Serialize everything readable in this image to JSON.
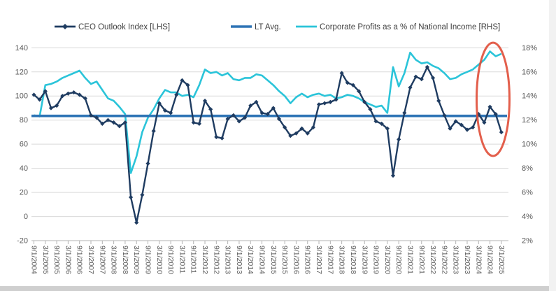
{
  "legend": {
    "items": [
      {
        "label": "CEO Outlook Index [LHS]",
        "color": "#1f3c61",
        "marker": "line-diamond"
      },
      {
        "label": "LT Avg.",
        "color": "#2e74b5",
        "marker": "line"
      },
      {
        "label": "Corporate Profits as a % of National Income [RHS]",
        "color": "#2bc4d9",
        "marker": "line"
      }
    ]
  },
  "chart_data": {
    "type": "line",
    "frequency": "quarterly",
    "x_start": "9/1/2004",
    "x_end": "3/1/2025",
    "x_axis_tick_labels": [
      "9/1/2004",
      "3/1/2005",
      "9/1/2005",
      "3/1/2006",
      "9/1/2006",
      "3/1/2007",
      "9/1/2007",
      "3/1/2008",
      "9/1/2008",
      "3/1/2009",
      "9/1/2009",
      "3/1/2010",
      "9/1/2010",
      "3/1/2011",
      "9/1/2011",
      "3/1/2012",
      "9/1/2012",
      "3/1/2013",
      "9/1/2013",
      "3/1/2014",
      "9/1/2014",
      "3/1/2015",
      "9/1/2015",
      "3/1/2016",
      "9/1/2016",
      "3/1/2017",
      "9/1/2017",
      "3/1/2018",
      "9/1/2018",
      "3/1/2019",
      "9/1/2019",
      "3/1/2020",
      "9/1/2020",
      "3/1/2021",
      "9/1/2021",
      "3/1/2022",
      "9/1/2022",
      "3/1/2023",
      "9/1/2023",
      "3/1/2024",
      "9/1/2024",
      "3/1/2025"
    ],
    "left_axis": {
      "min": -20,
      "max": 140,
      "step": 20,
      "tick_labels": [
        "140",
        "120",
        "100",
        "80",
        "60",
        "40",
        "20",
        "0",
        "-20"
      ]
    },
    "right_axis": {
      "min": 2,
      "max": 18,
      "step": 2,
      "tick_labels": [
        "18%",
        "16%",
        "14%",
        "12%",
        "10%",
        "8%",
        "6%",
        "4%",
        "2%"
      ]
    },
    "grid": "horizontal-only",
    "legend_position": "top",
    "series": [
      {
        "name": "CEO Outlook Index [LHS]",
        "axis": "left",
        "color": "#1f3c61",
        "marker": "diamond",
        "values": [
          101,
          97,
          104,
          90,
          92,
          100,
          102,
          103,
          101,
          98,
          84,
          82,
          77,
          80,
          78,
          75,
          78,
          16,
          -5,
          18,
          44,
          71,
          94,
          88,
          86,
          101,
          113,
          109,
          78,
          77,
          96,
          89,
          66,
          65,
          81,
          84,
          79,
          82,
          92,
          95,
          86,
          85,
          90,
          81,
          74,
          67,
          69,
          73,
          69,
          74,
          93,
          94,
          95,
          97,
          119,
          111,
          109,
          104,
          95,
          89,
          79,
          77,
          73,
          34,
          64,
          86,
          107,
          116,
          114,
          124,
          115,
          96,
          84,
          73,
          79,
          76,
          72,
          74,
          85,
          78,
          91,
          85,
          70
        ]
      },
      {
        "name": "Corporate Profits as a % of National Income [RHS]",
        "axis": "right",
        "color": "#2bc4d9",
        "marker": "none",
        "values": [
          12.4,
          12.3,
          14.9,
          15.0,
          15.2,
          15.5,
          15.7,
          15.9,
          16.1,
          15.5,
          15.0,
          15.2,
          14.5,
          13.8,
          13.6,
          13.1,
          12.5,
          7.6,
          9.0,
          11.0,
          12.2,
          12.9,
          13.8,
          14.5,
          14.3,
          14.3,
          14.0,
          14.1,
          13.9,
          14.9,
          16.2,
          15.9,
          16.0,
          15.7,
          15.9,
          15.4,
          15.3,
          15.5,
          15.5,
          15.8,
          15.7,
          15.3,
          14.9,
          14.4,
          14.0,
          13.4,
          13.9,
          14.2,
          13.9,
          14.1,
          14.2,
          14.0,
          14.1,
          13.8,
          13.9,
          14.1,
          14.0,
          13.8,
          13.5,
          13.3,
          13.1,
          13.2,
          12.6,
          16.4,
          14.8,
          15.9,
          17.6,
          17.0,
          16.7,
          16.8,
          16.5,
          16.3,
          15.9,
          15.4,
          15.5,
          15.8,
          16.0,
          16.2,
          16.6,
          17.0,
          17.7,
          17.3,
          17.5
        ]
      },
      {
        "name": "LT Avg.",
        "axis": "left",
        "color": "#2e74b5",
        "marker": "none",
        "constant_value": 83.5
      }
    ],
    "annotation": {
      "shape": "ellipse",
      "color": "#e04e39",
      "highlights": "final 2024-2025 divergence"
    },
    "colors": {
      "gridline": "#d9d9d9",
      "axis_line": "#b3b3b3",
      "tick_label": "#595959",
      "legend_text": "#404040"
    }
  }
}
